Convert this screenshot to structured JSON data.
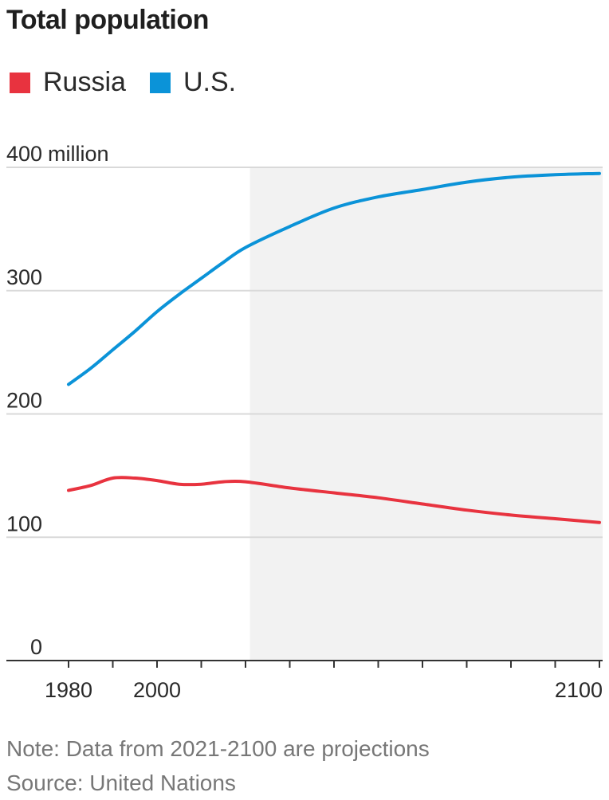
{
  "chart_data": {
    "type": "line",
    "title": "Total population",
    "ylabel_unit": "million",
    "ylim": [
      0,
      400
    ],
    "xlim": [
      1980,
      2100
    ],
    "y_ticks": [
      0,
      100,
      200,
      300,
      400
    ],
    "x_tick_labels": [
      1980,
      2000,
      2100
    ],
    "x_minor_ticks": [
      1980,
      1990,
      2000,
      2010,
      2020,
      2030,
      2040,
      2050,
      2060,
      2070,
      2080,
      2090,
      2100
    ],
    "grid": true,
    "legend_position": "top-left",
    "projection_shading": {
      "from": 2021,
      "to": 2100,
      "color": "#f2f2f2"
    },
    "series": [
      {
        "name": "Russia",
        "color": "#e8333f",
        "x": [
          1980,
          1985,
          1990,
          1995,
          2000,
          2005,
          2010,
          2015,
          2020,
          2030,
          2040,
          2050,
          2060,
          2070,
          2080,
          2090,
          2100
        ],
        "values": [
          138,
          142,
          148,
          148,
          146,
          143,
          143,
          145,
          145,
          140,
          136,
          132,
          127,
          122,
          118,
          115,
          112
        ]
      },
      {
        "name": "U.S.",
        "color": "#0b93d8",
        "x": [
          1980,
          1985,
          1990,
          1995,
          2000,
          2005,
          2010,
          2015,
          2020,
          2030,
          2040,
          2050,
          2060,
          2070,
          2080,
          2090,
          2100
        ],
        "values": [
          224,
          237,
          252,
          267,
          283,
          297,
          310,
          323,
          335,
          352,
          367,
          376,
          382,
          388,
          392,
          394,
          395
        ]
      }
    ]
  },
  "texts": {
    "title": "Total population",
    "top_tick_suffix": "million",
    "note": "Note: Data from 2021-2100 are projections",
    "source": "Source: United Nations"
  }
}
